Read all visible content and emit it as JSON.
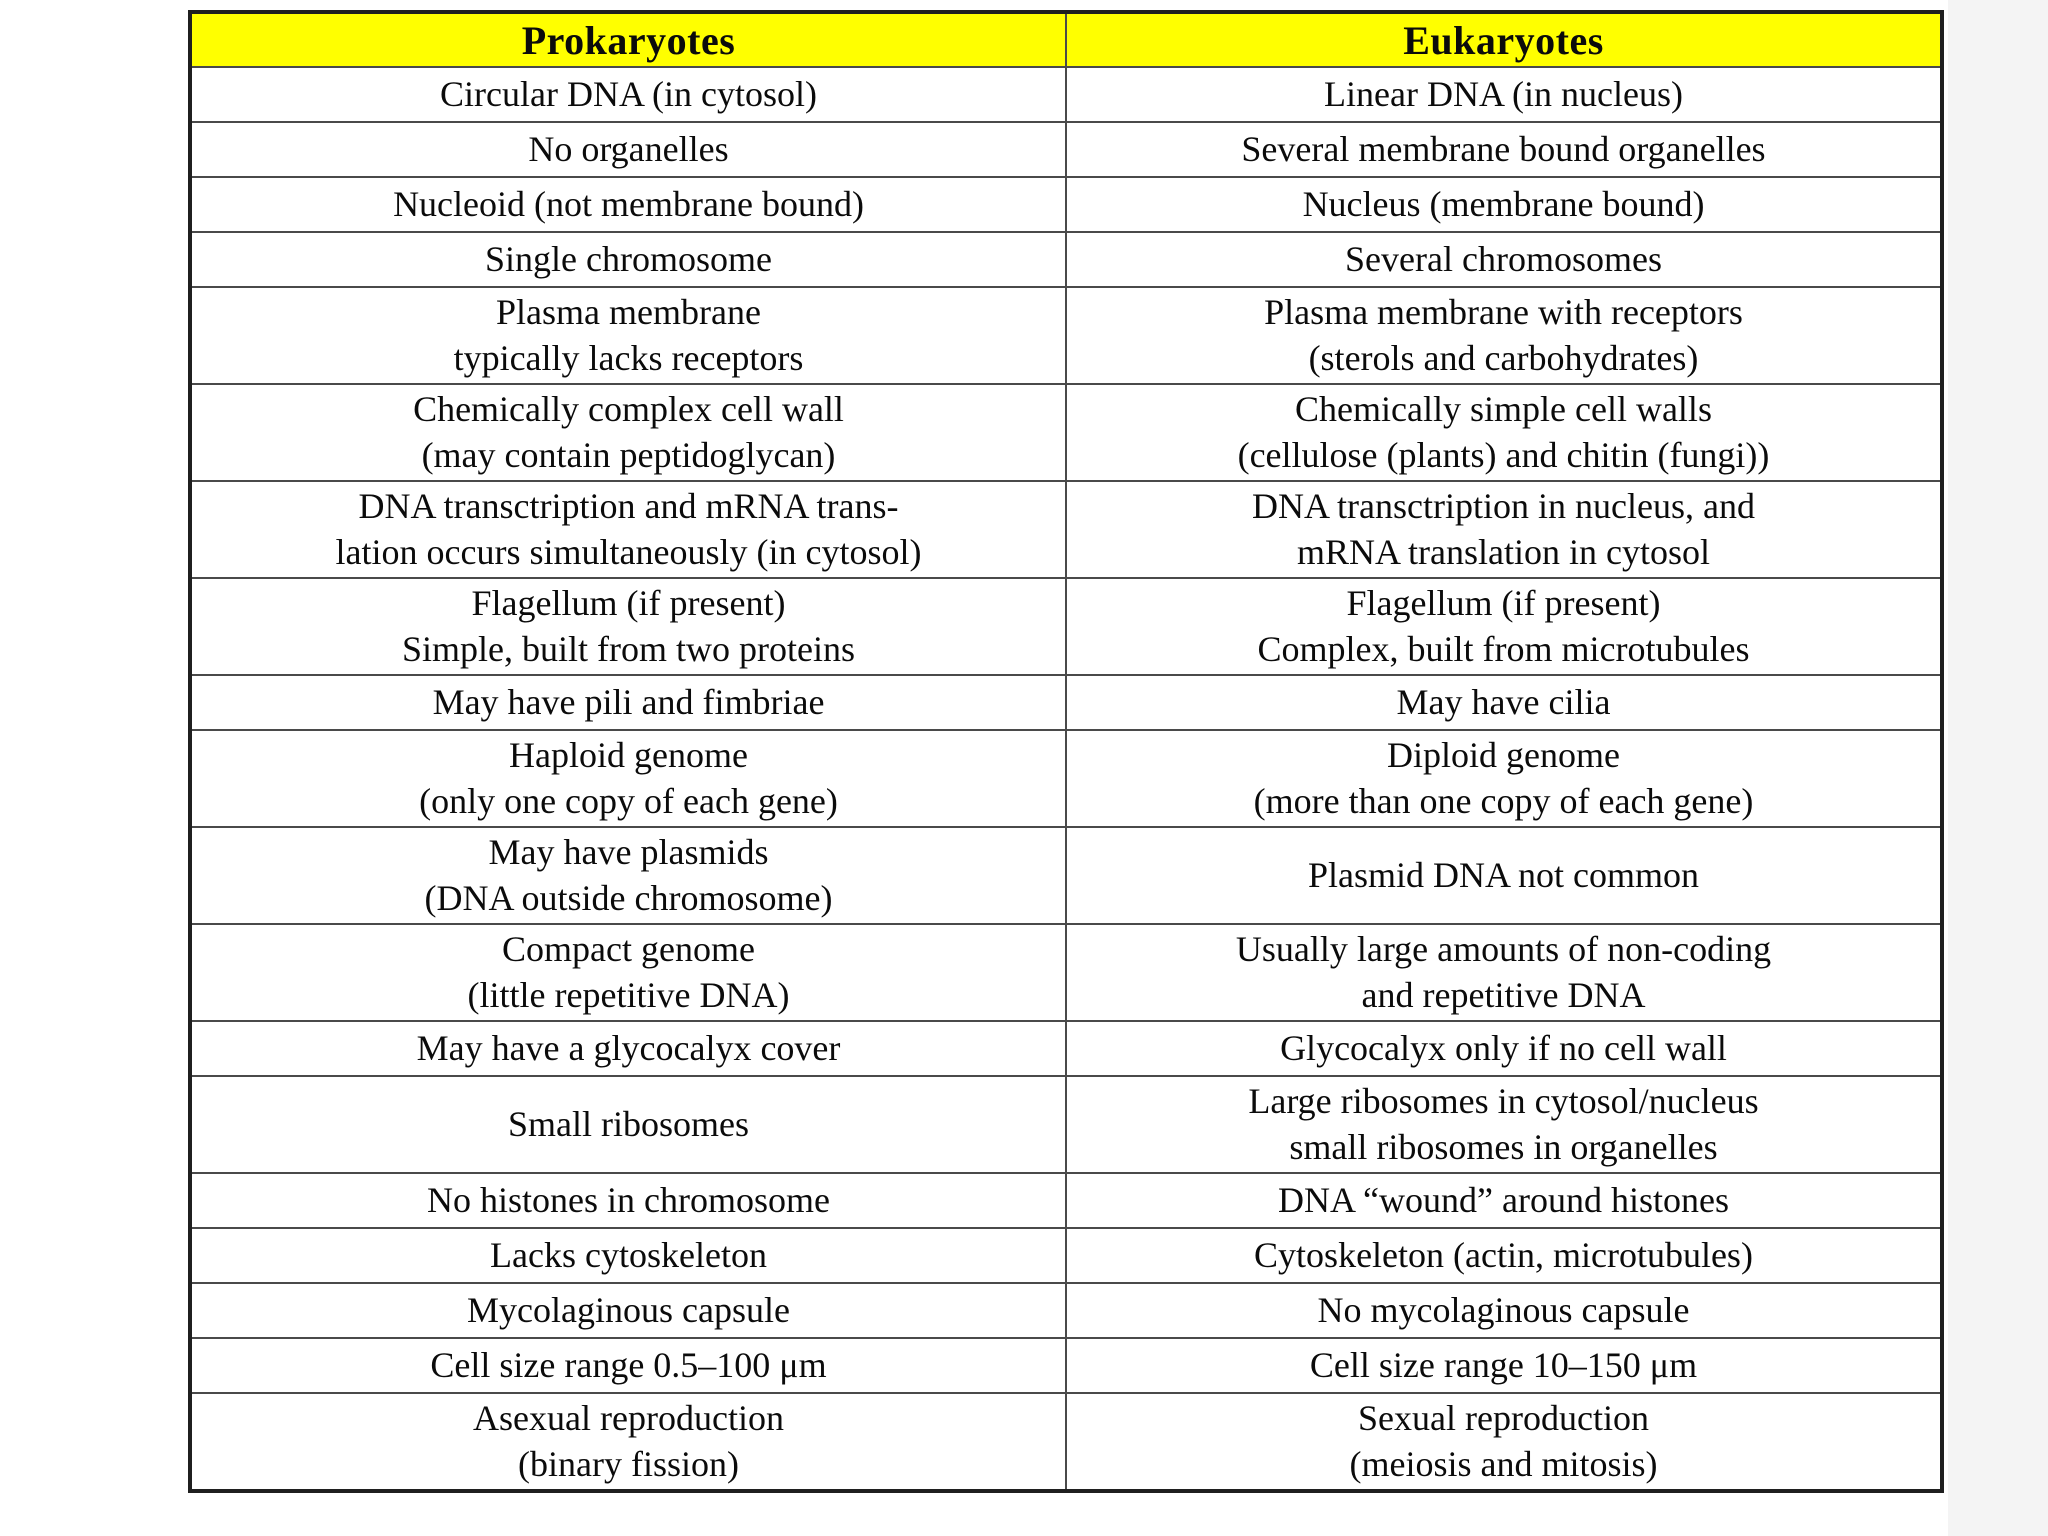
{
  "colors": {
    "header_bg": "#ffff00",
    "border_outer": "#1f1f1f",
    "border_inner": "#4a4a4a",
    "text": "#0b0b0b",
    "page_bg": "#ffffff"
  },
  "table": {
    "header": {
      "left": "Prokaryotes",
      "right": "Eukaryotes"
    },
    "rows": [
      {
        "left": [
          "Circular DNA (in cytosol)"
        ],
        "right": [
          "Linear DNA (in nucleus)"
        ]
      },
      {
        "left": [
          "No organelles"
        ],
        "right": [
          "Several membrane bound organelles"
        ]
      },
      {
        "left": [
          "Nucleoid (not membrane bound)"
        ],
        "right": [
          "Nucleus (membrane bound)"
        ]
      },
      {
        "left": [
          "Single chromosome"
        ],
        "right": [
          "Several chromosomes"
        ]
      },
      {
        "left": [
          "Plasma membrane",
          "typically lacks receptors"
        ],
        "right": [
          "Plasma membrane with receptors",
          "(sterols and carbohydrates)"
        ]
      },
      {
        "left": [
          "Chemically complex cell wall",
          "(may contain peptidoglycan)"
        ],
        "right": [
          "Chemically simple cell walls",
          "(cellulose (plants) and chitin (fungi))"
        ]
      },
      {
        "left": [
          "DNA transctription and mRNA trans-",
          "lation occurs simultaneously (in cytosol)"
        ],
        "right": [
          "DNA transctription in nucleus, and",
          "mRNA translation in cytosol"
        ]
      },
      {
        "left": [
          "Flagellum (if present)",
          "Simple, built from two proteins"
        ],
        "right": [
          "Flagellum (if present)",
          "Complex, built from microtubules"
        ]
      },
      {
        "left": [
          "May have pili and fimbriae"
        ],
        "right": [
          "May have cilia"
        ]
      },
      {
        "left": [
          "Haploid genome",
          "(only one copy of each gene)"
        ],
        "right": [
          "Diploid genome",
          "(more than one copy of each gene)"
        ]
      },
      {
        "left": [
          "May have plasmids",
          "(DNA outside chromosome)"
        ],
        "right": [
          "Plasmid DNA not common"
        ]
      },
      {
        "left": [
          "Compact genome",
          "(little repetitive DNA)"
        ],
        "right": [
          "Usually large amounts of non-coding",
          "and repetitive DNA"
        ]
      },
      {
        "left": [
          "May have a glycocalyx cover"
        ],
        "right": [
          "Glycocalyx only if no cell wall"
        ]
      },
      {
        "left": [
          "Small ribosomes"
        ],
        "right": [
          "Large ribosomes in cytosol/nucleus",
          "small ribosomes in organelles"
        ]
      },
      {
        "left": [
          "No histones in chromosome"
        ],
        "right": [
          "DNA “wound” around histones"
        ]
      },
      {
        "left": [
          "Lacks cytoskeleton"
        ],
        "right": [
          "Cytoskeleton (actin, microtubules)"
        ]
      },
      {
        "left": [
          "Mycolaginous capsule"
        ],
        "right": [
          "No mycolaginous capsule"
        ]
      },
      {
        "left": [
          "Cell size range 0.5–100 μm"
        ],
        "right": [
          "Cell size range 10–150 μm"
        ]
      },
      {
        "left": [
          "Asexual reproduction",
          "(binary fission)"
        ],
        "right": [
          "Sexual reproduction",
          "(meiosis and mitosis)"
        ]
      }
    ]
  }
}
